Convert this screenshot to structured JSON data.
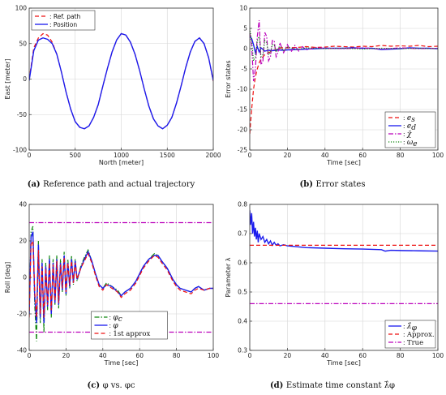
{
  "chart_data": [
    {
      "id": "a",
      "type": "line",
      "caption": {
        "tag": "(a)",
        "text": "Reference path and actual trajectory"
      },
      "xlabel": "North [meter]",
      "ylabel": "East [meter]",
      "xlim": [
        0,
        2000
      ],
      "ylim": [
        -100,
        100
      ],
      "xticks": [
        0,
        500,
        1000,
        1500,
        2000
      ],
      "yticks": [
        -100,
        -50,
        0,
        50,
        100
      ],
      "grid": true,
      "legend": "top-left",
      "series": [
        {
          "name": ": Ref. path",
          "color": "#ee1111",
          "dash": "dashed",
          "x": [
            0,
            50,
            100,
            150,
            200,
            250,
            300,
            350,
            400,
            450,
            500,
            550,
            600,
            650,
            700,
            750,
            800,
            850,
            900,
            950,
            1000,
            1050,
            1100,
            1150,
            1200,
            1250,
            1300,
            1350,
            1400,
            1450,
            1500,
            1550,
            1600,
            1650,
            1700,
            1750,
            1800,
            1850,
            1900,
            1950,
            2000
          ],
          "y": [
            0,
            44,
            58,
            64,
            62,
            52,
            35,
            10,
            -18,
            -42,
            -60,
            -68,
            -70,
            -66,
            -54,
            -36,
            -10,
            15,
            38,
            55,
            64,
            62,
            52,
            35,
            12,
            -14,
            -38,
            -56,
            -66,
            -70,
            -65,
            -54,
            -34,
            -10,
            16,
            38,
            53,
            58,
            50,
            30,
            -3
          ]
        },
        {
          "name": ": Position",
          "color": "#1a1aee",
          "dash": "solid",
          "x": [
            0,
            50,
            100,
            150,
            200,
            250,
            300,
            350,
            400,
            450,
            500,
            550,
            600,
            650,
            700,
            750,
            800,
            850,
            900,
            950,
            1000,
            1050,
            1100,
            1150,
            1200,
            1250,
            1300,
            1350,
            1400,
            1450,
            1500,
            1550,
            1600,
            1650,
            1700,
            1750,
            1800,
            1850,
            1900,
            1950,
            2000
          ],
          "y": [
            -2,
            40,
            55,
            58,
            56,
            50,
            35,
            10,
            -18,
            -42,
            -60,
            -68,
            -70,
            -66,
            -54,
            -36,
            -10,
            15,
            38,
            55,
            64,
            62,
            52,
            35,
            12,
            -14,
            -38,
            -56,
            -66,
            -70,
            -65,
            -54,
            -34,
            -10,
            16,
            38,
            53,
            58,
            50,
            30,
            -2
          ]
        }
      ]
    },
    {
      "id": "b",
      "type": "line",
      "caption": {
        "tag": "(b)",
        "text": "Error states"
      },
      "xlabel": "Time [sec]",
      "ylabel": "Error states",
      "xlim": [
        0,
        100
      ],
      "ylim": [
        -25,
        10
      ],
      "xticks": [
        0,
        20,
        40,
        60,
        80,
        100
      ],
      "yticks": [
        -25,
        -20,
        -15,
        -10,
        -5,
        0,
        5,
        10
      ],
      "grid": true,
      "legend": "bottom-right",
      "series": [
        {
          "name": ": e_s",
          "color": "#ee1111",
          "dash": "dashed",
          "x": [
            0,
            1,
            2,
            3,
            4,
            5,
            6,
            8,
            10,
            12,
            15,
            18,
            20,
            25,
            30,
            35,
            40,
            45,
            50,
            55,
            60,
            65,
            70,
            75,
            80,
            85,
            90,
            95,
            100
          ],
          "y": [
            -21,
            -15,
            -10,
            -7,
            -5,
            -3.5,
            -2.5,
            -1.5,
            -1,
            -0.5,
            0,
            0.3,
            0.2,
            0.3,
            0.5,
            0.3,
            0.4,
            0.6,
            0.5,
            0.4,
            0.6,
            0.5,
            0.8,
            0.6,
            0.7,
            0.6,
            0.8,
            0.5,
            0.6
          ]
        },
        {
          "name": ": e_d",
          "color": "#1a1aee",
          "dash": "solid",
          "x": [
            0,
            1,
            2,
            3,
            4,
            5,
            6,
            8,
            10,
            12,
            15,
            18,
            20,
            25,
            30,
            35,
            40,
            45,
            50,
            55,
            60,
            65,
            70,
            75,
            80,
            85,
            90,
            95,
            100
          ],
          "y": [
            3,
            2.5,
            1,
            -1,
            0.5,
            -0.8,
            0.2,
            -0.6,
            -0.4,
            -0.5,
            -0.3,
            -0.4,
            -0.3,
            -0.2,
            -0.1,
            0,
            0.1,
            0.1,
            0.1,
            0.2,
            0.1,
            0.1,
            -0.2,
            -0.1,
            0,
            0.2,
            0.1,
            0.1,
            0
          ]
        },
        {
          "name": ": χ̃",
          "color": "#bb00bb",
          "dash": "dashdot",
          "x": [
            0,
            1,
            2,
            3,
            4,
            5,
            6,
            7,
            8,
            9,
            10,
            11,
            12,
            13,
            14,
            15,
            16,
            18,
            20,
            22,
            24,
            26,
            28,
            30,
            35,
            40,
            50,
            60,
            70,
            80,
            90,
            100
          ],
          "y": [
            4,
            1,
            -8,
            -5,
            3,
            7,
            -4,
            -3,
            4,
            3,
            -3,
            -2,
            2,
            2,
            -2,
            -1,
            1.5,
            -1,
            1,
            -0.8,
            0.8,
            -0.6,
            0.5,
            -0.3,
            0.3,
            0.1,
            0,
            0.2,
            -0.1,
            0.2,
            0,
            0.1
          ]
        },
        {
          "name": ": ω_e",
          "color": "#118811",
          "dash": "dotted",
          "x": [
            0,
            1,
            2,
            3,
            4,
            5,
            6,
            7,
            8,
            9,
            10,
            11,
            12,
            13,
            14,
            16,
            18,
            20,
            25,
            30,
            40,
            50,
            60,
            70,
            80,
            90,
            100
          ],
          "y": [
            5,
            2,
            -3,
            -2,
            2,
            3,
            -2,
            -1.5,
            2,
            1.5,
            -1.5,
            -1,
            1,
            1,
            -0.8,
            0.6,
            -0.5,
            0.4,
            -0.2,
            0.2,
            0,
            0.1,
            -0.1,
            0.1,
            0,
            0.1,
            0
          ]
        }
      ]
    },
    {
      "id": "c",
      "type": "line",
      "caption": {
        "tag": "(c)",
        "text": "φ vs. φc"
      },
      "xlabel": "Time [sec]",
      "ylabel": "Roll [deg]",
      "xlim": [
        0,
        100
      ],
      "ylim": [
        -40,
        40
      ],
      "xticks": [
        0,
        20,
        40,
        60,
        80,
        100
      ],
      "yticks": [
        -40,
        -20,
        0,
        20,
        40
      ],
      "grid": true,
      "legend": "bottom-center",
      "series": [
        {
          "name": ": φc",
          "color": "#118811",
          "dash": "dashdot",
          "x": [
            0,
            1,
            2,
            3,
            4,
            5,
            6,
            7,
            8,
            9,
            10,
            11,
            12,
            13,
            14,
            15,
            16,
            17,
            18,
            19,
            20,
            21,
            22,
            23,
            24,
            25,
            26,
            28,
            30,
            32,
            34,
            36,
            38,
            40,
            42,
            45,
            48,
            50,
            52,
            55,
            58,
            60,
            62,
            65,
            68,
            70,
            72,
            75,
            78,
            80,
            82,
            85,
            88,
            90,
            92,
            95,
            98,
            100
          ],
          "y": [
            -20,
            25,
            28,
            -15,
            -35,
            20,
            -25,
            10,
            -30,
            8,
            -18,
            12,
            -22,
            10,
            -15,
            12,
            -17,
            10,
            -8,
            14,
            -10,
            10,
            -6,
            12,
            -4,
            10,
            -2,
            6,
            11,
            15,
            9,
            2,
            -4,
            -6,
            -3,
            -5,
            -7,
            -10,
            -8,
            -6,
            -2,
            2,
            6,
            10,
            13,
            12,
            9,
            5,
            -1,
            -4,
            -6,
            -7,
            -8,
            -6,
            -5,
            -7,
            -6,
            -6
          ]
        },
        {
          "name": ": φ",
          "color": "#1a1aee",
          "dash": "solid",
          "x": [
            0,
            1,
            2,
            3,
            4,
            5,
            6,
            7,
            8,
            9,
            10,
            11,
            12,
            13,
            14,
            15,
            16,
            17,
            18,
            19,
            20,
            21,
            22,
            23,
            24,
            25,
            26,
            28,
            30,
            32,
            34,
            36,
            38,
            40,
            42,
            45,
            48,
            50,
            52,
            55,
            58,
            60,
            62,
            65,
            68,
            70,
            72,
            75,
            78,
            80,
            82,
            85,
            88,
            90,
            92,
            95,
            98,
            100
          ],
          "y": [
            -20,
            22,
            25,
            -10,
            -25,
            18,
            -22,
            8,
            -25,
            6,
            -16,
            10,
            -20,
            8,
            -14,
            10,
            -15,
            8,
            -7,
            12,
            -9,
            8,
            -5,
            10,
            -3,
            9,
            -1,
            5,
            10,
            14,
            9,
            2,
            -4,
            -6,
            -4,
            -5,
            -8,
            -10,
            -8,
            -6,
            -2,
            2,
            6,
            10,
            12,
            12,
            9,
            5,
            -1,
            -4,
            -6,
            -7,
            -8,
            -6,
            -5,
            -7,
            -6,
            -6
          ]
        },
        {
          "name": ": 1st approx",
          "color": "#ee1111",
          "dash": "dashed",
          "x": [
            0,
            1,
            2,
            3,
            4,
            5,
            6,
            7,
            8,
            9,
            10,
            11,
            12,
            13,
            14,
            15,
            16,
            17,
            18,
            19,
            20,
            21,
            22,
            23,
            24,
            25,
            26,
            28,
            30,
            32,
            34,
            36,
            38,
            40,
            42,
            45,
            48,
            50,
            52,
            55,
            58,
            60,
            62,
            65,
            68,
            70,
            72,
            75,
            78,
            80,
            82,
            85,
            88,
            90,
            92,
            95,
            98,
            100
          ],
          "y": [
            -22,
            18,
            20,
            -8,
            -22,
            15,
            -20,
            6,
            -22,
            5,
            -15,
            8,
            -18,
            7,
            -13,
            9,
            -14,
            7,
            -6,
            11,
            -8,
            8,
            -4,
            9,
            -3,
            8,
            -1,
            5,
            9,
            13,
            8,
            1,
            -5,
            -7,
            -4,
            -6,
            -8,
            -11,
            -9,
            -7,
            -3,
            1,
            5,
            9,
            12,
            11,
            8,
            4,
            -2,
            -5,
            -7,
            -8,
            -9,
            -7,
            -6,
            -7,
            -6,
            -6
          ]
        },
        {
          "name": "",
          "color": "#bb00bb",
          "dash": "dashdot",
          "x": [
            0,
            100
          ],
          "y": [
            30,
            30
          ]
        },
        {
          "name": "",
          "color": "#bb00bb",
          "dash": "dashdot",
          "x": [
            0,
            100
          ],
          "y": [
            -30,
            -30
          ]
        }
      ]
    },
    {
      "id": "d",
      "type": "line",
      "caption": {
        "tag": "(d)",
        "text": "Estimate time constant λ̂φ"
      },
      "xlabel": "Time [sec]",
      "ylabel": "Parameter λ",
      "xlim": [
        0,
        100
      ],
      "ylim": [
        0.3,
        0.8
      ],
      "xticks": [
        0,
        20,
        40,
        60,
        80,
        100
      ],
      "yticks": [
        0.3,
        0.4,
        0.5,
        0.6,
        0.7,
        0.8
      ],
      "grid": true,
      "legend": "bottom-right",
      "series": [
        {
          "name": ": λ̂φ",
          "color": "#1a1aee",
          "dash": "solid",
          "x": [
            0,
            0.5,
            1,
            1.5,
            2,
            2.5,
            3,
            3.5,
            4,
            4.5,
            5,
            6,
            7,
            8,
            9,
            10,
            11,
            12,
            13,
            14,
            15,
            16,
            18,
            20,
            25,
            30,
            40,
            50,
            60,
            70,
            72,
            75,
            80,
            90,
            100
          ],
          "y": [
            0.78,
            0.73,
            0.77,
            0.7,
            0.74,
            0.69,
            0.72,
            0.68,
            0.71,
            0.67,
            0.7,
            0.68,
            0.69,
            0.67,
            0.68,
            0.665,
            0.675,
            0.66,
            0.67,
            0.66,
            0.665,
            0.658,
            0.662,
            0.658,
            0.655,
            0.652,
            0.65,
            0.648,
            0.647,
            0.645,
            0.64,
            0.643,
            0.642,
            0.641,
            0.64
          ]
        },
        {
          "name": ": Approx.",
          "color": "#ee1111",
          "dash": "dashed",
          "x": [
            0,
            100
          ],
          "y": [
            0.66,
            0.66
          ]
        },
        {
          "name": ": True",
          "color": "#bb00bb",
          "dash": "dashdot",
          "x": [
            0,
            100
          ],
          "y": [
            0.46,
            0.46
          ]
        }
      ]
    }
  ]
}
